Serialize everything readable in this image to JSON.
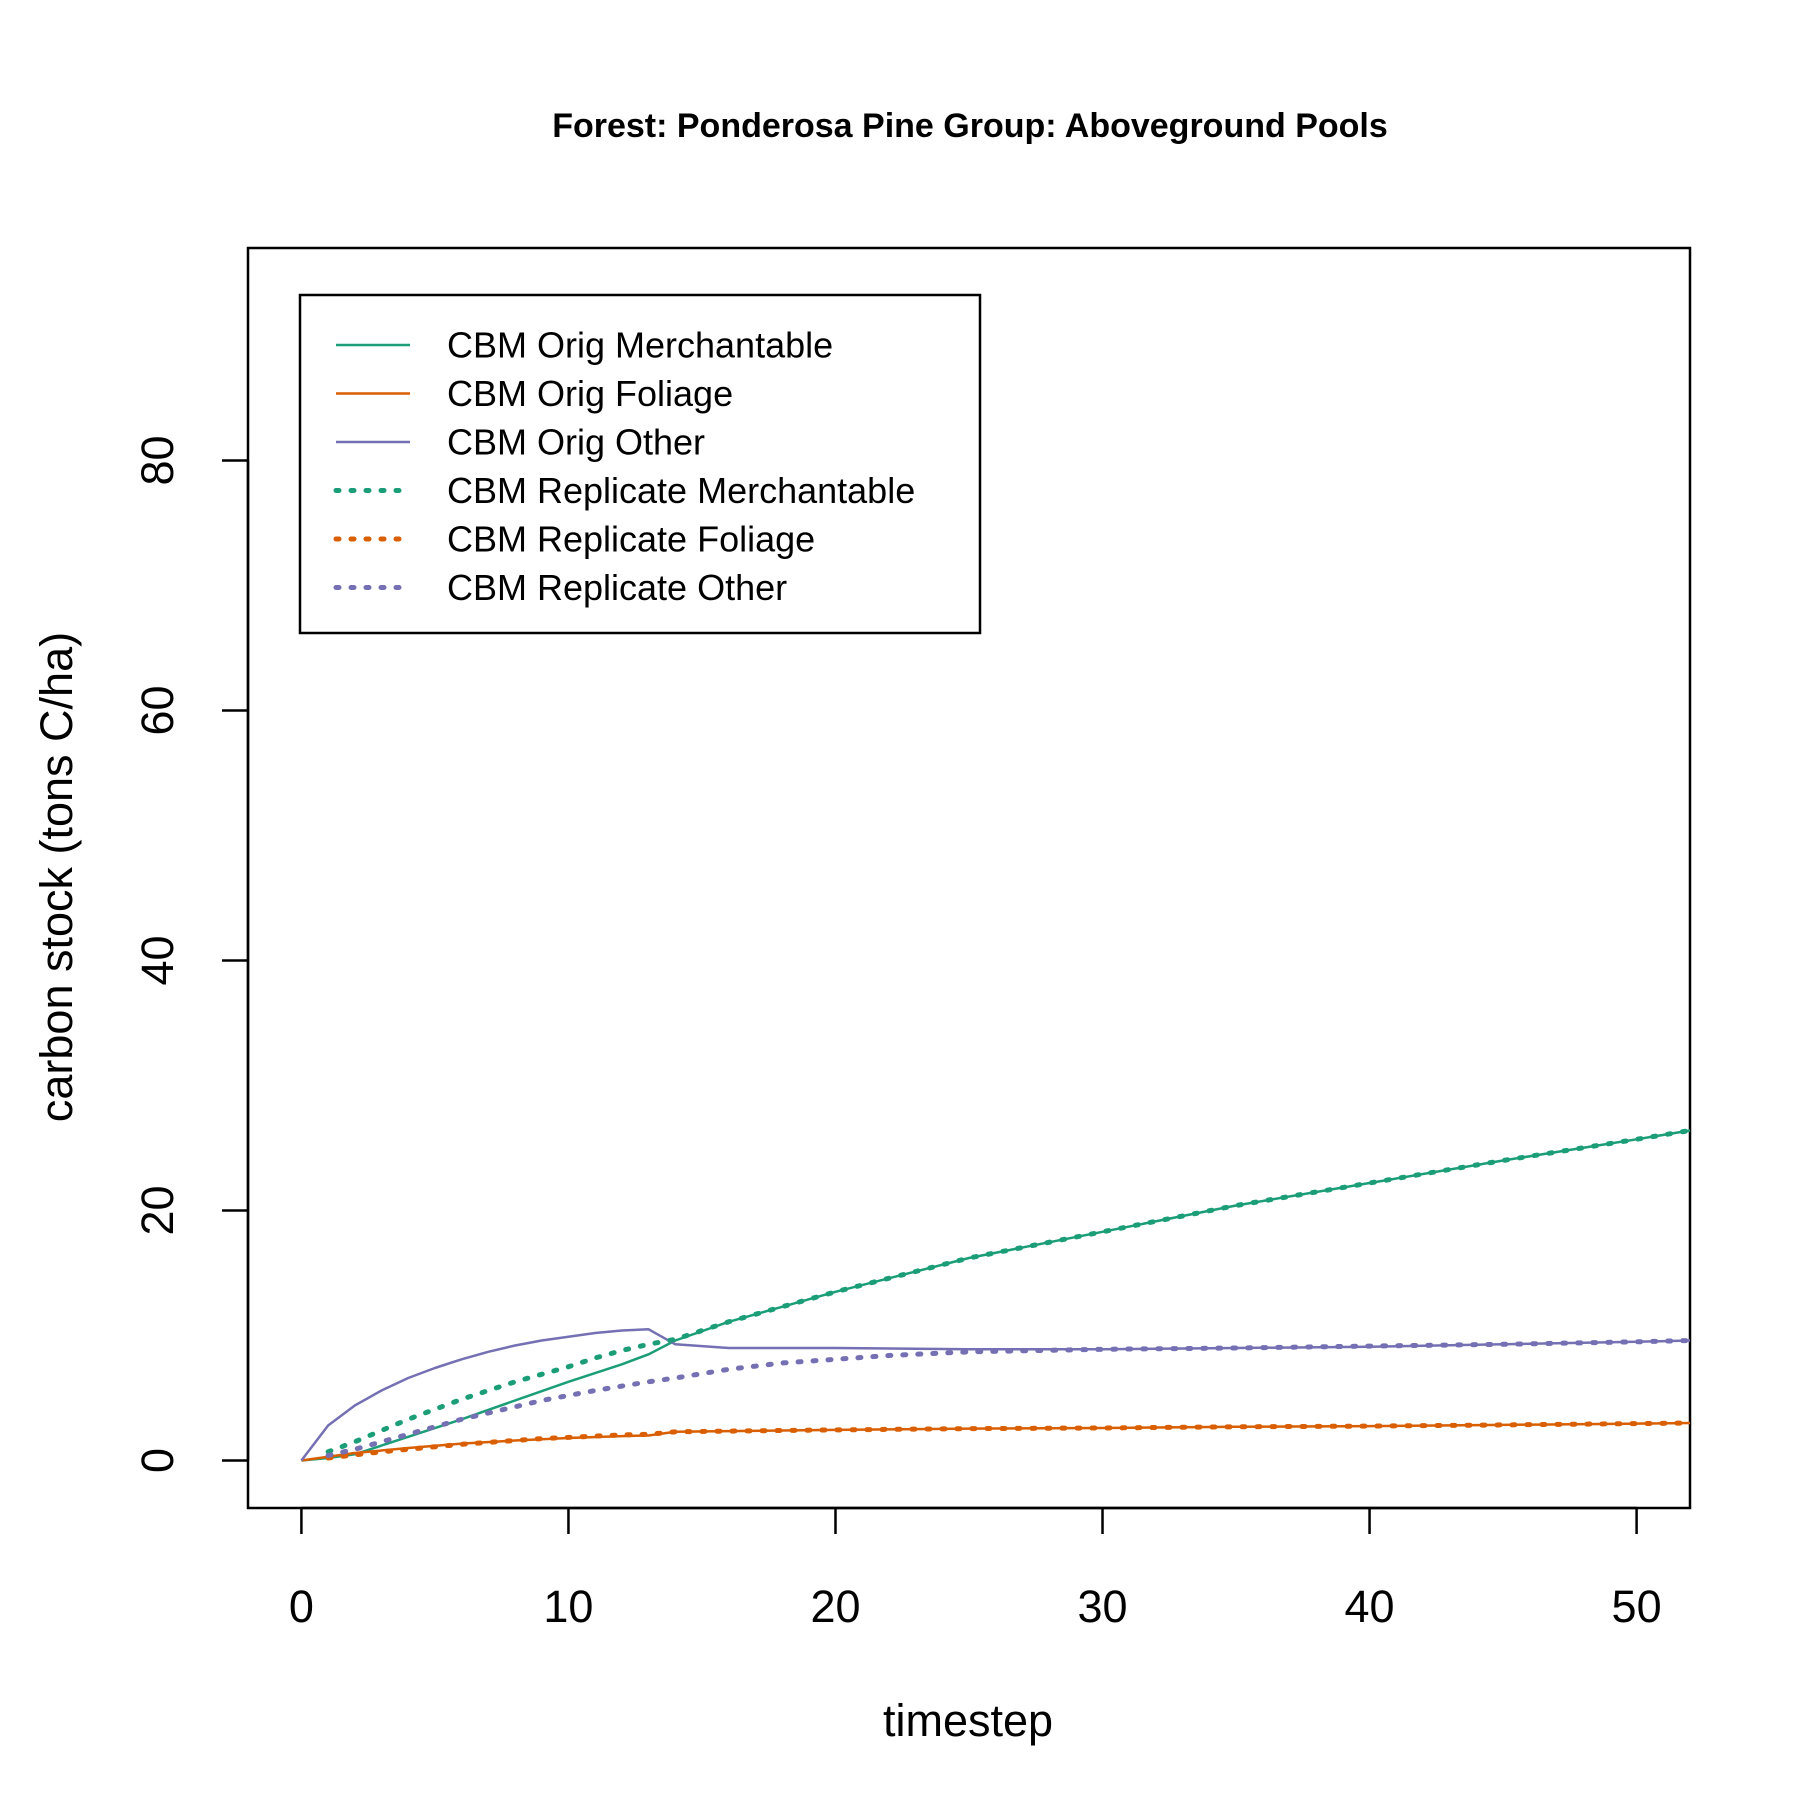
{
  "chart_data": {
    "type": "line",
    "title": "Forest: Ponderosa Pine Group: Aboveground Pools",
    "xlabel": "timestep",
    "ylabel": "carbon stock (tons C/ha)",
    "xlim": [
      -2,
      52
    ],
    "ylim": [
      -3.8,
      97
    ],
    "xticks": [
      0,
      10,
      20,
      30,
      40,
      50
    ],
    "yticks": [
      0,
      20,
      40,
      60,
      80
    ],
    "grid": false,
    "legend_position": "top-left",
    "series": [
      {
        "name": "CBM Orig Merchantable",
        "color": "#1b9e77",
        "style": "solid",
        "x": [
          0,
          1,
          2,
          4,
          6,
          8,
          10,
          12,
          13,
          14,
          16,
          18,
          20,
          25,
          30,
          35,
          40,
          45,
          50,
          52
        ],
        "y": [
          0,
          0.2,
          0.5,
          1.9,
          3.3,
          4.8,
          6.3,
          7.7,
          8.5,
          9.6,
          11.1,
          12.3,
          13.5,
          16.2,
          18.3,
          20.4,
          22.2,
          24.0,
          25.7,
          26.4
        ]
      },
      {
        "name": "CBM Orig Foliage",
        "color": "#d95f02",
        "style": "solid",
        "x": [
          0,
          1,
          2,
          4,
          6,
          8,
          10,
          12,
          13,
          14,
          16,
          18,
          20,
          25,
          30,
          35,
          40,
          45,
          50,
          52
        ],
        "y": [
          0,
          0.3,
          0.6,
          1.0,
          1.35,
          1.6,
          1.8,
          1.95,
          2.0,
          2.3,
          2.35,
          2.4,
          2.45,
          2.55,
          2.6,
          2.7,
          2.75,
          2.85,
          2.95,
          3.0
        ]
      },
      {
        "name": "CBM Orig Other",
        "color": "#7570b3",
        "style": "solid",
        "x": [
          0,
          1,
          2,
          3,
          4,
          5,
          6,
          7,
          8,
          9,
          10,
          11,
          12,
          13,
          14,
          15,
          16,
          17,
          18,
          20,
          25,
          30,
          35,
          40,
          45,
          50,
          52
        ],
        "y": [
          0,
          2.8,
          4.4,
          5.6,
          6.6,
          7.4,
          8.1,
          8.7,
          9.2,
          9.6,
          9.9,
          10.2,
          10.4,
          10.5,
          9.3,
          9.15,
          9.0,
          9.0,
          9.0,
          9.0,
          8.9,
          8.9,
          9.0,
          9.1,
          9.3,
          9.5,
          9.6
        ]
      },
      {
        "name": "CBM Replicate Merchantable",
        "color": "#1b9e77",
        "style": "dotted",
        "x": [
          1,
          2,
          3,
          4,
          5,
          6,
          7,
          8,
          9,
          10,
          11,
          12,
          13,
          14,
          16,
          18,
          20,
          25,
          30,
          35,
          40,
          45,
          50,
          52
        ],
        "y": [
          0.7,
          1.5,
          2.4,
          3.3,
          4.1,
          4.9,
          5.6,
          6.3,
          6.9,
          7.5,
          8.2,
          8.8,
          9.3,
          9.7,
          11.1,
          12.3,
          13.5,
          16.2,
          18.3,
          20.4,
          22.2,
          24.0,
          25.7,
          26.4
        ]
      },
      {
        "name": "CBM Replicate Foliage",
        "color": "#d95f02",
        "style": "dotted",
        "x": [
          1,
          2,
          3,
          4,
          5,
          6,
          7,
          8,
          9,
          10,
          11,
          12,
          13,
          14,
          16,
          18,
          20,
          25,
          30,
          35,
          40,
          45,
          50,
          52
        ],
        "y": [
          0.2,
          0.45,
          0.7,
          0.9,
          1.1,
          1.3,
          1.45,
          1.6,
          1.75,
          1.85,
          1.95,
          2.05,
          2.1,
          2.3,
          2.35,
          2.4,
          2.45,
          2.55,
          2.6,
          2.7,
          2.75,
          2.85,
          2.95,
          3.0
        ]
      },
      {
        "name": "CBM Replicate Other",
        "color": "#7570b3",
        "style": "dotted",
        "x": [
          1,
          2,
          3,
          4,
          5,
          6,
          7,
          8,
          9,
          10,
          11,
          12,
          13,
          14,
          16,
          18,
          20,
          22,
          25,
          30,
          35,
          40,
          45,
          50,
          52
        ],
        "y": [
          0.4,
          0.9,
          1.5,
          2.1,
          2.7,
          3.3,
          3.8,
          4.3,
          4.8,
          5.2,
          5.6,
          5.95,
          6.3,
          6.6,
          7.3,
          7.8,
          8.1,
          8.4,
          8.7,
          8.9,
          9.0,
          9.15,
          9.3,
          9.5,
          9.6
        ]
      }
    ]
  }
}
